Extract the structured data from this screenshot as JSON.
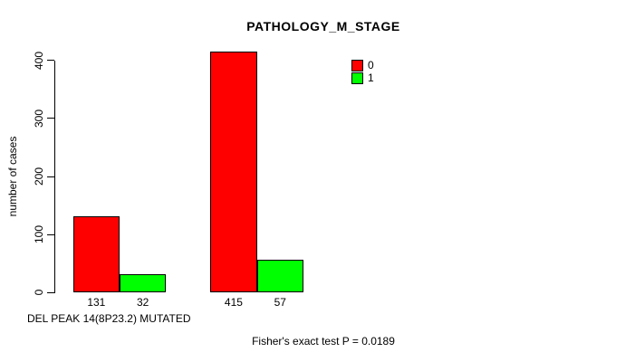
{
  "chart_data": {
    "type": "bar",
    "title": "PATHOLOGY_M_STAGE",
    "ylabel": "number of cases",
    "xlabel": "DEL PEAK 14(8P23.2) MUTATED",
    "footnote": "Fisher's exact test P = 0.0189",
    "ylim": [
      0,
      400
    ],
    "yticks": [
      0,
      100,
      200,
      300,
      400
    ],
    "grid": false,
    "series": [
      {
        "name": "0",
        "color": "#FF0000",
        "values": [
          131,
          415
        ],
        "value_labels": [
          "131",
          "415"
        ]
      },
      {
        "name": "1",
        "color": "#00FF00",
        "values": [
          32,
          57
        ],
        "value_labels": [
          "32",
          "57"
        ]
      }
    ],
    "legend": {
      "position": "inside-top-right",
      "entries": [
        {
          "label": "0",
          "color": "#FF0000"
        },
        {
          "label": "1",
          "color": "#00FF00"
        }
      ]
    },
    "colors": {
      "background": "#FFFFFF",
      "axis": "#000000",
      "text": "#000000"
    }
  }
}
